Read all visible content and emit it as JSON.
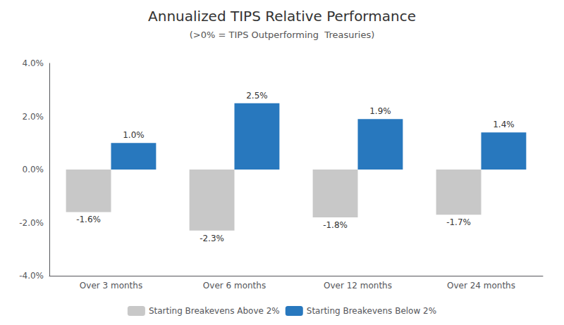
{
  "chart_data": {
    "type": "bar",
    "title": "Annualized TIPS Relative Performance",
    "subtitle": "(>0% = TIPS Outperforming  Treasuries)",
    "categories": [
      "Over 3 months",
      "Over 6 months",
      "Over 12 months",
      "Over 24 months"
    ],
    "series": [
      {
        "name": "Starting Breakevens Above 2%",
        "color": "#c8c8c8",
        "values": [
          -1.6,
          -2.3,
          -1.8,
          -1.7
        ],
        "value_labels": [
          "-1.6%",
          "-2.3%",
          "-1.8%",
          "-1.7%"
        ]
      },
      {
        "name": "Starting Breakevens Below 2%",
        "color": "#2878be",
        "values": [
          1.0,
          2.5,
          1.9,
          1.4
        ],
        "value_labels": [
          "1.0%",
          "2.5%",
          "1.9%",
          "1.4%"
        ]
      }
    ],
    "ylim": [
      -4.0,
      4.0
    ],
    "yticks": [
      {
        "value": -4.0,
        "label": "-4.0%"
      },
      {
        "value": -2.0,
        "label": "-2.0%"
      },
      {
        "value": 0.0,
        "label": "0.0%"
      },
      {
        "value": 2.0,
        "label": "2.0%"
      },
      {
        "value": 4.0,
        "label": "4.0%"
      }
    ],
    "grid": false,
    "legend": "bottom",
    "data_labels": true
  }
}
